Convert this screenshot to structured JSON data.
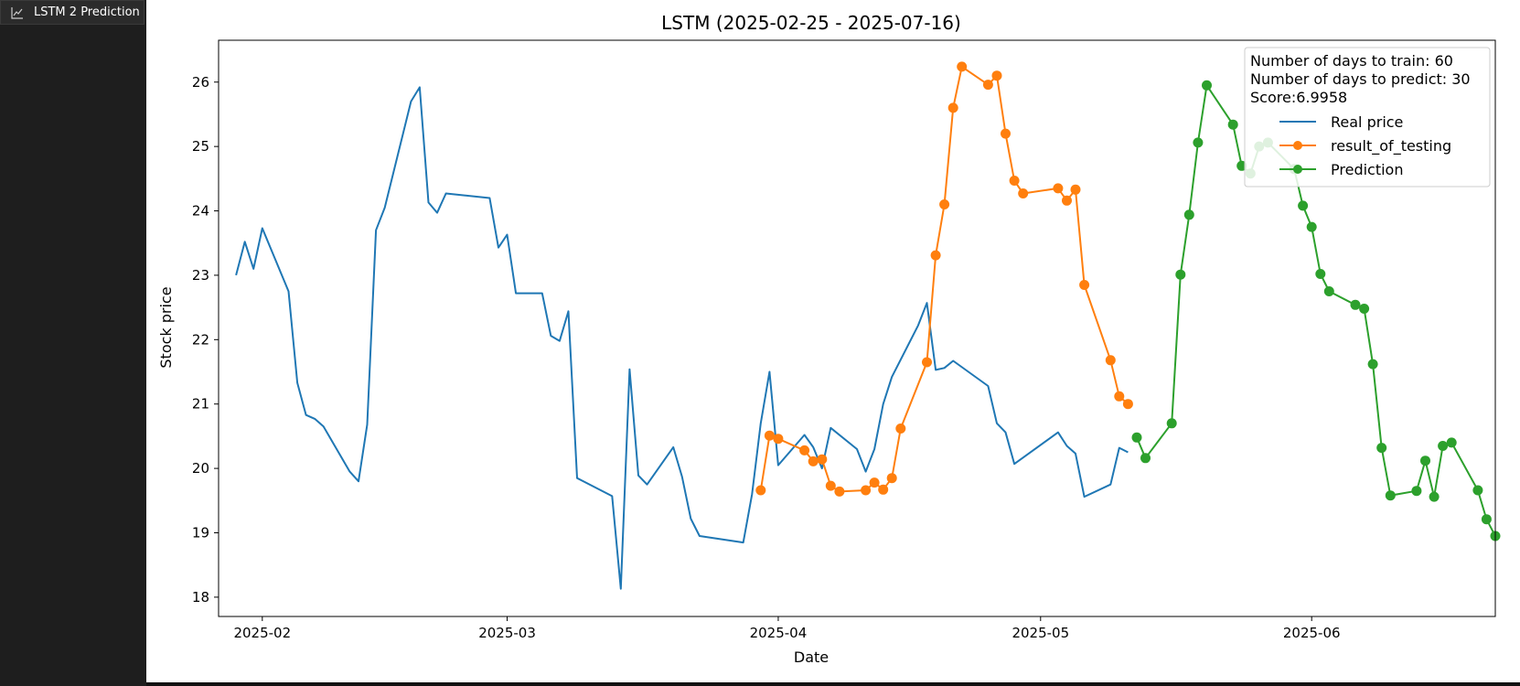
{
  "tab": {
    "label": "LSTM 2 Prediction",
    "icon": "chart-icon"
  },
  "chart_data": {
    "type": "line",
    "title": "LSTM (2025-02-25 - 2025-07-16)",
    "xlabel": "Date",
    "ylabel": "Stock price",
    "xlim": [
      "2025-01-27",
      "2025-06-22"
    ],
    "ylim": [
      17.7,
      26.65
    ],
    "x_ticks": [
      "2025-02",
      "2025-03",
      "2025-04",
      "2025-05",
      "2025-06"
    ],
    "y_ticks": [
      18,
      19,
      20,
      21,
      22,
      23,
      24,
      25,
      26
    ],
    "grid": false,
    "legend": {
      "placement": "top-right",
      "info_lines": [
        "Number of days to train: 60",
        "Number of days to predict: 30",
        "Score:6.9958"
      ]
    },
    "series": [
      {
        "name": "Real price",
        "color": "#1f77b4",
        "marker": false,
        "points": [
          [
            "2025-01-29",
            23.0
          ],
          [
            "2025-01-30",
            23.52
          ],
          [
            "2025-01-31",
            23.1
          ],
          [
            "2025-02-01",
            23.73
          ],
          [
            "2025-02-04",
            22.75
          ],
          [
            "2025-02-05",
            21.33
          ],
          [
            "2025-02-06",
            20.83
          ],
          [
            "2025-02-07",
            20.77
          ],
          [
            "2025-02-08",
            20.65
          ],
          [
            "2025-02-11",
            19.95
          ],
          [
            "2025-02-12",
            19.8
          ],
          [
            "2025-02-13",
            20.68
          ],
          [
            "2025-02-14",
            23.7
          ],
          [
            "2025-02-15",
            24.05
          ],
          [
            "2025-02-18",
            25.7
          ],
          [
            "2025-02-19",
            25.92
          ],
          [
            "2025-02-20",
            24.13
          ],
          [
            "2025-02-21",
            23.97
          ],
          [
            "2025-02-22",
            24.27
          ],
          [
            "2025-02-27",
            24.2
          ],
          [
            "2025-02-28",
            23.43
          ],
          [
            "2025-03-01",
            23.63
          ],
          [
            "2025-03-02",
            22.72
          ],
          [
            "2025-03-05",
            22.72
          ],
          [
            "2025-03-06",
            22.06
          ],
          [
            "2025-03-07",
            21.98
          ],
          [
            "2025-03-08",
            22.44
          ],
          [
            "2025-03-09",
            19.85
          ],
          [
            "2025-03-13",
            19.57
          ],
          [
            "2025-03-14",
            18.13
          ],
          [
            "2025-03-15",
            21.54
          ],
          [
            "2025-03-16",
            19.89
          ],
          [
            "2025-03-17",
            19.75
          ],
          [
            "2025-03-20",
            20.33
          ],
          [
            "2025-03-21",
            19.87
          ],
          [
            "2025-03-22",
            19.22
          ],
          [
            "2025-03-23",
            18.95
          ],
          [
            "2025-03-28",
            18.85
          ],
          [
            "2025-03-29",
            19.6
          ],
          [
            "2025-03-30",
            20.7
          ],
          [
            "2025-03-31",
            21.5
          ],
          [
            "2025-04-01",
            20.05
          ],
          [
            "2025-04-04",
            20.52
          ],
          [
            "2025-04-05",
            20.33
          ],
          [
            "2025-04-06",
            20.0
          ],
          [
            "2025-04-07",
            20.63
          ],
          [
            "2025-04-10",
            20.3
          ],
          [
            "2025-04-11",
            19.95
          ],
          [
            "2025-04-12",
            20.3
          ],
          [
            "2025-04-13",
            21.0
          ],
          [
            "2025-04-14",
            21.42
          ],
          [
            "2025-04-17",
            22.22
          ],
          [
            "2025-04-18",
            22.57
          ],
          [
            "2025-04-19",
            21.53
          ],
          [
            "2025-04-20",
            21.56
          ],
          [
            "2025-04-21",
            21.67
          ],
          [
            "2025-04-25",
            21.28
          ],
          [
            "2025-04-26",
            20.7
          ],
          [
            "2025-04-27",
            20.56
          ],
          [
            "2025-04-28",
            20.07
          ],
          [
            "2025-05-03",
            20.56
          ],
          [
            "2025-05-04",
            20.35
          ],
          [
            "2025-05-05",
            20.23
          ],
          [
            "2025-05-06",
            19.56
          ],
          [
            "2025-05-09",
            19.75
          ],
          [
            "2025-05-10",
            20.32
          ],
          [
            "2025-05-11",
            20.25
          ]
        ]
      },
      {
        "name": "result_of_testing",
        "color": "#ff7f0e",
        "marker": true,
        "points": [
          [
            "2025-03-30",
            19.66
          ],
          [
            "2025-03-31",
            20.51
          ],
          [
            "2025-04-01",
            20.46
          ],
          [
            "2025-04-04",
            20.28
          ],
          [
            "2025-04-05",
            20.11
          ],
          [
            "2025-04-06",
            20.14
          ],
          [
            "2025-04-07",
            19.73
          ],
          [
            "2025-04-08",
            19.64
          ],
          [
            "2025-04-11",
            19.66
          ],
          [
            "2025-04-12",
            19.78
          ],
          [
            "2025-04-13",
            19.67
          ],
          [
            "2025-04-14",
            19.85
          ],
          [
            "2025-04-15",
            20.62
          ],
          [
            "2025-04-18",
            21.65
          ],
          [
            "2025-04-19",
            23.31
          ],
          [
            "2025-04-20",
            24.1
          ],
          [
            "2025-04-21",
            25.6
          ],
          [
            "2025-04-22",
            26.24
          ],
          [
            "2025-04-25",
            25.96
          ],
          [
            "2025-04-26",
            26.1
          ],
          [
            "2025-04-27",
            25.2
          ],
          [
            "2025-04-28",
            24.47
          ],
          [
            "2025-04-29",
            24.27
          ],
          [
            "2025-05-03",
            24.35
          ],
          [
            "2025-05-04",
            24.16
          ],
          [
            "2025-05-05",
            24.33
          ],
          [
            "2025-05-06",
            22.85
          ],
          [
            "2025-05-09",
            21.68
          ],
          [
            "2025-05-10",
            21.12
          ],
          [
            "2025-05-11",
            21.0
          ]
        ]
      },
      {
        "name": "Prediction",
        "color": "#2ca02c",
        "marker": true,
        "points": [
          [
            "2025-05-12",
            20.48
          ],
          [
            "2025-05-13",
            20.16
          ],
          [
            "2025-05-16",
            20.7
          ],
          [
            "2025-05-17",
            23.01
          ],
          [
            "2025-05-18",
            23.94
          ],
          [
            "2025-05-19",
            25.06
          ],
          [
            "2025-05-20",
            25.95
          ],
          [
            "2025-05-23",
            25.34
          ],
          [
            "2025-05-24",
            24.7
          ],
          [
            "2025-05-25",
            24.58
          ],
          [
            "2025-05-26",
            25.0
          ],
          [
            "2025-05-27",
            25.06
          ],
          [
            "2025-05-30",
            24.65
          ],
          [
            "2025-05-31",
            24.08
          ],
          [
            "2025-06-01",
            23.75
          ],
          [
            "2025-06-02",
            23.02
          ],
          [
            "2025-06-03",
            22.75
          ],
          [
            "2025-06-06",
            22.54
          ],
          [
            "2025-06-07",
            22.48
          ],
          [
            "2025-06-08",
            21.62
          ],
          [
            "2025-06-09",
            20.32
          ],
          [
            "2025-06-10",
            19.58
          ],
          [
            "2025-06-13",
            19.65
          ],
          [
            "2025-06-14",
            20.12
          ],
          [
            "2025-06-15",
            19.56
          ],
          [
            "2025-06-16",
            20.35
          ],
          [
            "2025-06-17",
            20.4
          ],
          [
            "2025-06-20",
            19.66
          ],
          [
            "2025-06-21",
            19.21
          ],
          [
            "2025-06-22",
            18.95
          ]
        ]
      }
    ]
  }
}
